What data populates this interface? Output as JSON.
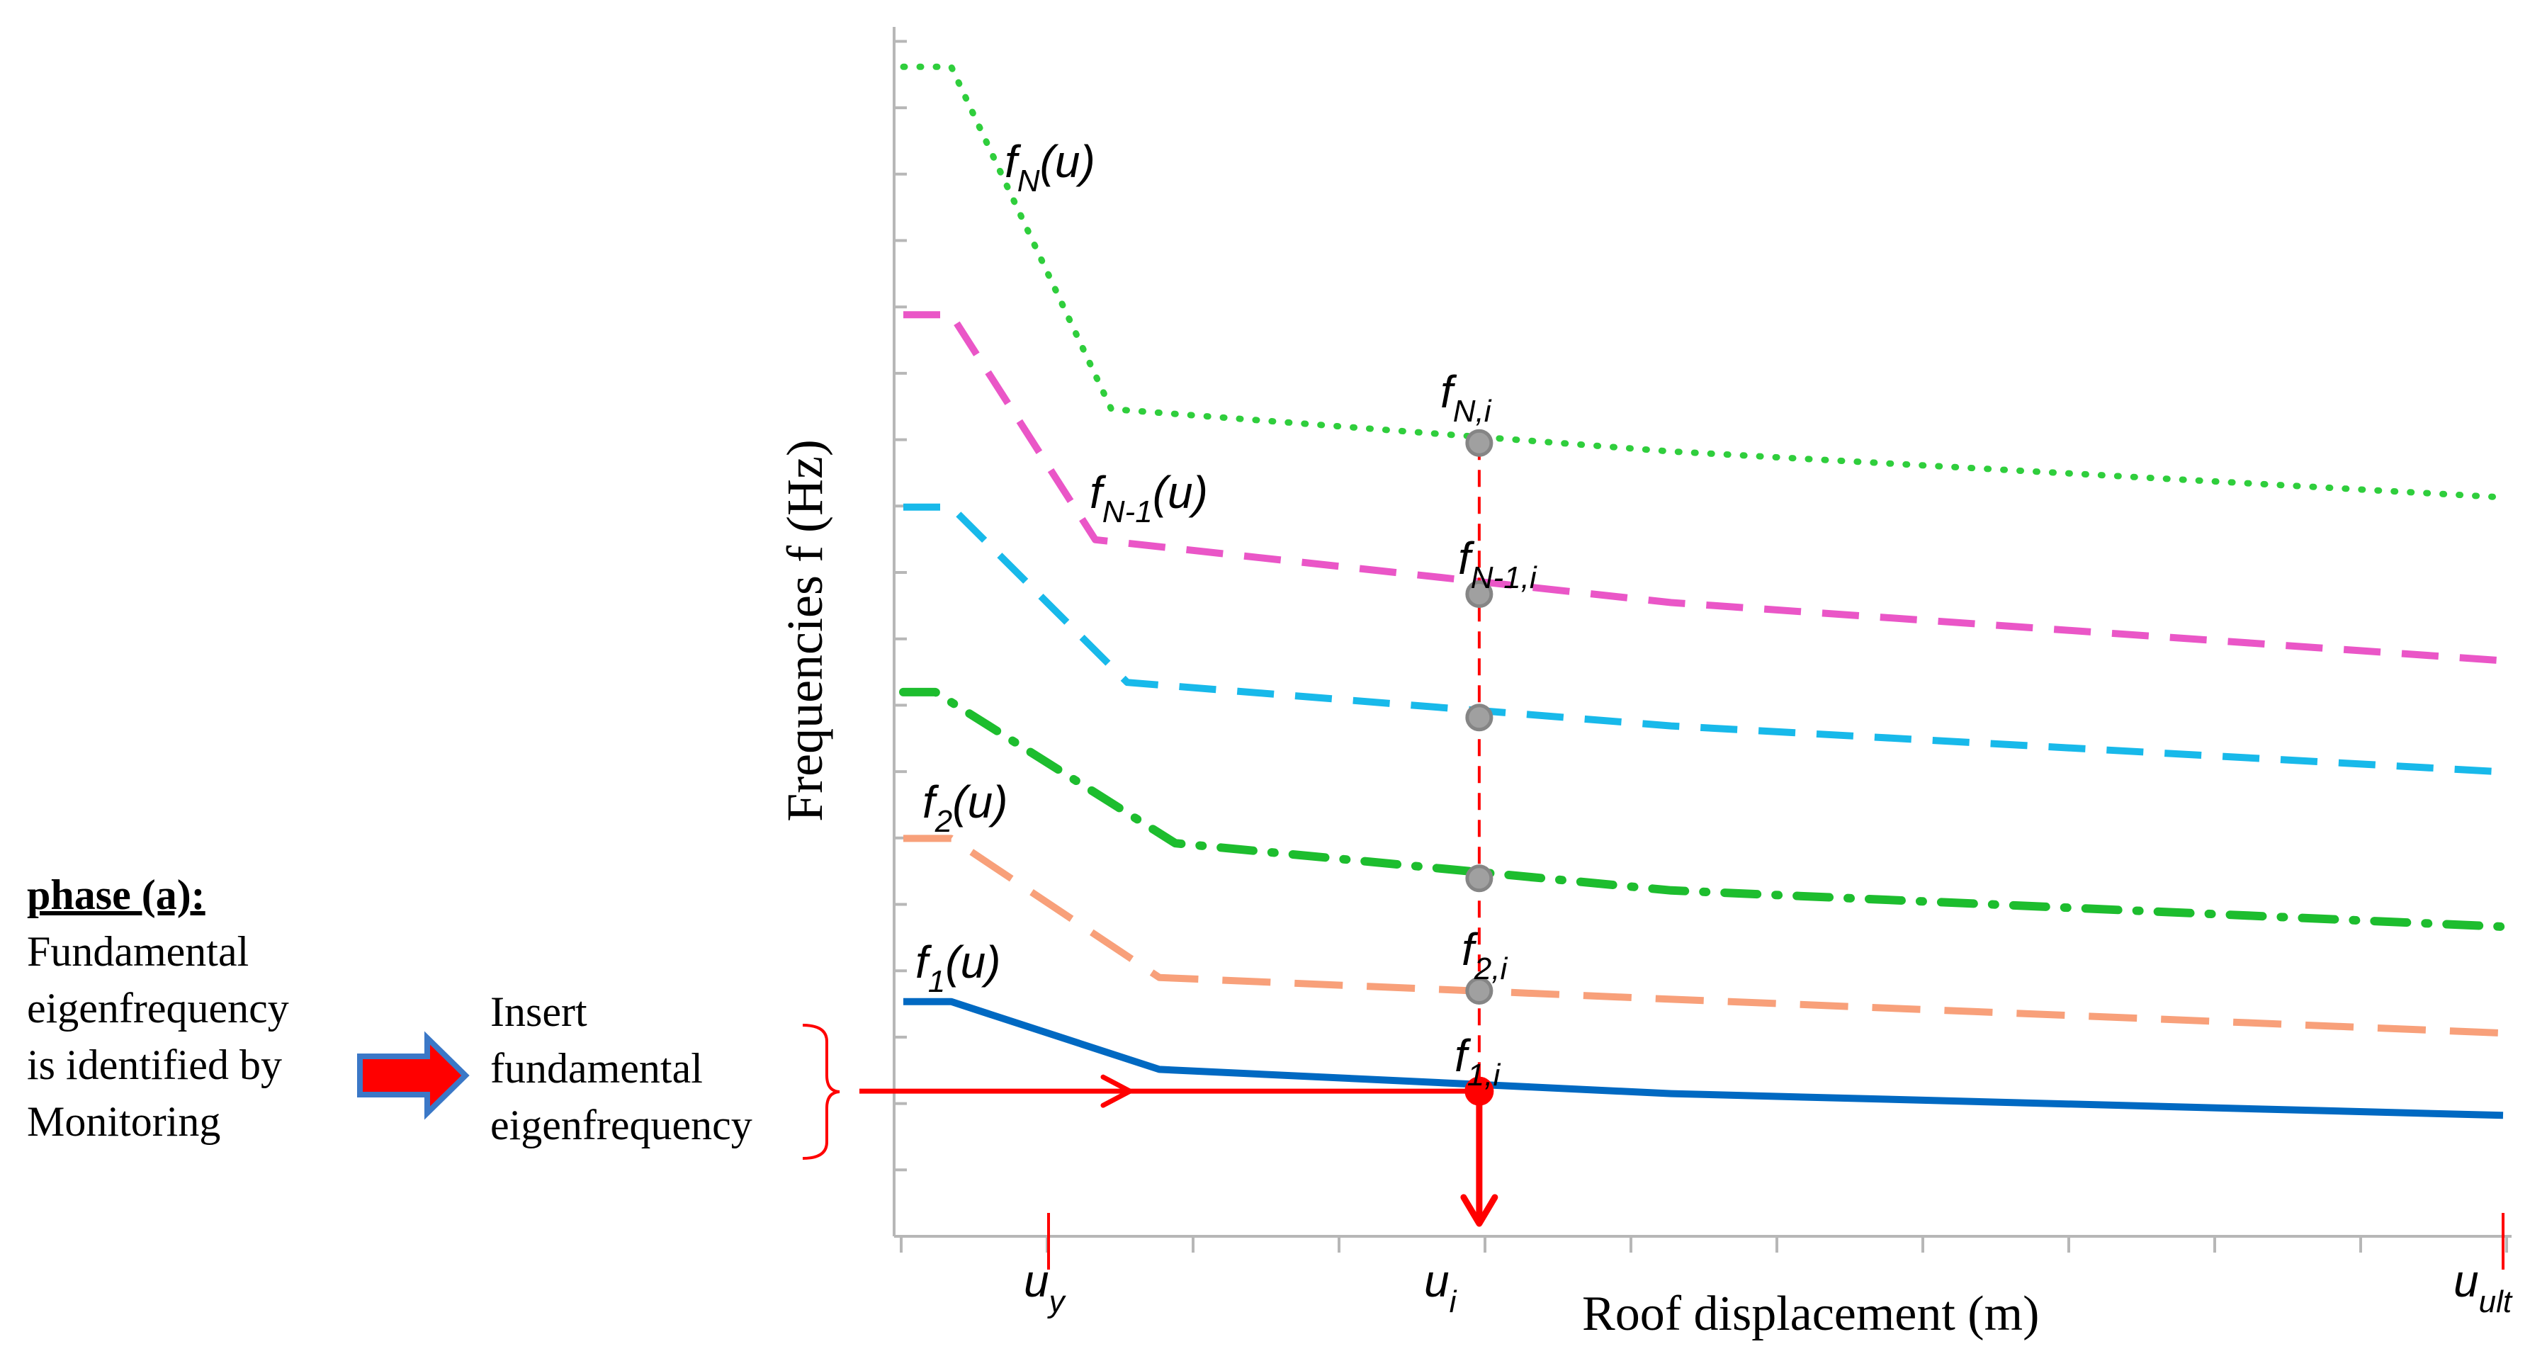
{
  "chart_data": {
    "type": "line",
    "title": "",
    "xlabel": "Roof displacement (m)",
    "ylabel": "Frequencies f (Hz)",
    "x_tick_labels": {
      "uy": {
        "main": "u",
        "sub": "y"
      },
      "ui": {
        "main": "u",
        "sub": "i"
      },
      "uult": {
        "main": "u",
        "sub": "ult"
      }
    },
    "x_domain": [
      0,
      100
    ],
    "y_domain": [
      0,
      100
    ],
    "grid": false,
    "series": [
      {
        "key": "fN",
        "style": "dotted",
        "color": "#2fce3c",
        "label": {
          "main": "f",
          "sub": "N",
          "suffix": "(u)"
        },
        "x": [
          0,
          3,
          13,
          48,
          100
        ],
        "y": [
          96.7,
          96.7,
          68.4,
          64.9,
          61.1
        ]
      },
      {
        "key": "fN1",
        "style": "dashed",
        "color": "#ea56c7",
        "label": {
          "main": "f",
          "sub": "N-1",
          "suffix": "(u)"
        },
        "x": [
          0,
          3,
          12,
          48,
          100
        ],
        "y": [
          76.2,
          76.2,
          57.6,
          52.4,
          47.6
        ]
      },
      {
        "key": "f3",
        "style": "dashed",
        "color": "#18b9ea",
        "label": null,
        "x": [
          0,
          3,
          14,
          48,
          100
        ],
        "y": [
          60.3,
          60.3,
          45.8,
          42.2,
          38.4
        ]
      },
      {
        "key": "f4",
        "style": "dashdot",
        "color": "#1dbd2e",
        "label": null,
        "x": [
          0,
          2,
          17,
          48,
          100
        ],
        "y": [
          45.0,
          45.0,
          32.5,
          28.6,
          25.6
        ]
      },
      {
        "key": "f2",
        "style": "longdash",
        "color": "#f8a07a",
        "label": {
          "main": "f",
          "sub": "2",
          "suffix": "(u)"
        },
        "x": [
          0,
          3,
          16,
          48,
          100
        ],
        "y": [
          32.9,
          32.9,
          21.4,
          19.6,
          16.8
        ]
      },
      {
        "key": "f1",
        "style": "solid",
        "color": "#0069c2",
        "label": {
          "main": "f",
          "sub": "1",
          "suffix": "(u)"
        },
        "x": [
          0,
          3,
          16,
          48,
          100
        ],
        "y": [
          19.4,
          19.4,
          13.8,
          11.8,
          10.0
        ]
      }
    ],
    "current_state": {
      "x": 36,
      "points": [
        {
          "series": "fN",
          "y": 65.6,
          "label": {
            "main": "f",
            "sub": "N,i"
          }
        },
        {
          "series": "fN1",
          "y": 53.1,
          "label": {
            "main": "f",
            "sub": "N-1,i"
          }
        },
        {
          "series": "f3",
          "y": 42.9,
          "label": null
        },
        {
          "series": "f4",
          "y": 29.6,
          "label": null
        },
        {
          "series": "f2",
          "y": 20.3,
          "label": {
            "main": "f",
            "sub": "2,i"
          }
        },
        {
          "series": "f1",
          "y": 12.0,
          "label": {
            "main": "f",
            "sub": "1,i"
          },
          "highlight": true
        }
      ]
    }
  },
  "annotations": {
    "phase_title": "phase (a):",
    "phase_lines": [
      "Fundamental",
      "eigenfrequency",
      "is identified by",
      "Monitoring"
    ],
    "insert_lines": [
      "Insert",
      "fundamental",
      "eigenfrequency"
    ]
  },
  "colors": {
    "axis": "#b7b7b7",
    "marker_fill": "#a0a0a0",
    "marker_stroke": "#858585",
    "highlight": "#ff0000",
    "big_arrow_fill": "#ff0000",
    "big_arrow_border": "#3b78c7"
  }
}
